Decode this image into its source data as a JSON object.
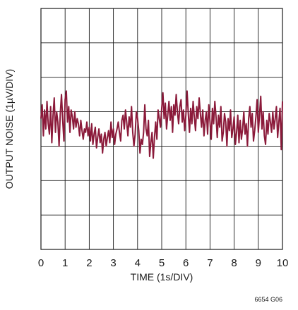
{
  "chart_data": {
    "type": "line",
    "xlabel": "TIME (1s/DIV)",
    "ylabel": "OUTPUT NOISE (1µV/DIV)",
    "x_ticks": [
      "0",
      "1",
      "2",
      "3",
      "4",
      "5",
      "6",
      "7",
      "8",
      "9",
      "10"
    ],
    "xlim": [
      0,
      10
    ],
    "ylim": [
      -3.6,
      3.4
    ],
    "grid": true,
    "y_divisions": 7,
    "figure_id": "6654 G06",
    "colors": {
      "trace": "#8b1a3a",
      "grid": "#1a1a1a",
      "text": "#1a1a1a"
    },
    "series": [
      {
        "x": [
          0.0,
          0.05,
          0.1,
          0.15,
          0.2,
          0.25,
          0.3,
          0.35,
          0.4,
          0.45,
          0.5,
          0.55,
          0.6,
          0.65,
          0.7,
          0.75,
          0.8,
          0.85,
          0.9,
          0.95,
          1.0,
          1.05,
          1.1,
          1.15,
          1.2,
          1.25,
          1.3,
          1.35,
          1.4,
          1.45,
          1.5,
          1.55,
          1.6,
          1.65,
          1.7,
          1.75,
          1.8,
          1.85,
          1.9,
          1.95,
          2.0,
          2.05,
          2.1,
          2.15,
          2.2,
          2.25,
          2.3,
          2.35,
          2.4,
          2.45,
          2.5,
          2.55,
          2.6,
          2.65,
          2.7,
          2.75,
          2.8,
          2.85,
          2.9,
          2.95,
          3.0,
          3.05,
          3.1,
          3.15,
          3.2,
          3.25,
          3.3,
          3.35,
          3.4,
          3.45,
          3.5,
          3.55,
          3.6,
          3.65,
          3.7,
          3.75,
          3.8,
          3.85,
          3.9,
          3.95,
          4.0,
          4.05,
          4.1,
          4.15,
          4.2,
          4.25,
          4.3,
          4.35,
          4.4,
          4.45,
          4.5,
          4.55,
          4.6,
          4.65,
          4.7,
          4.75,
          4.8,
          4.85,
          4.9,
          4.95,
          5.0,
          5.05,
          5.1,
          5.15,
          5.2,
          5.25,
          5.3,
          5.35,
          5.4,
          5.45,
          5.5,
          5.55,
          5.6,
          5.65,
          5.7,
          5.75,
          5.8,
          5.85,
          5.9,
          5.95,
          6.0,
          6.05,
          6.1,
          6.15,
          6.2,
          6.25,
          6.3,
          6.35,
          6.4,
          6.45,
          6.5,
          6.55,
          6.6,
          6.65,
          6.7,
          6.75,
          6.8,
          6.85,
          6.9,
          6.95,
          7.0,
          7.05,
          7.1,
          7.15,
          7.2,
          7.25,
          7.3,
          7.35,
          7.4,
          7.45,
          7.5,
          7.55,
          7.6,
          7.65,
          7.7,
          7.75,
          7.8,
          7.85,
          7.9,
          7.95,
          8.0,
          8.05,
          8.1,
          8.15,
          8.2,
          8.25,
          8.3,
          8.35,
          8.4,
          8.45,
          8.5,
          8.55,
          8.6,
          8.65,
          8.7,
          8.75,
          8.8,
          8.85,
          8.9,
          8.95,
          9.0,
          9.05,
          9.1,
          9.15,
          9.2,
          9.25,
          9.3,
          9.35,
          9.4,
          9.45,
          9.5,
          9.55,
          9.6,
          9.65,
          9.7,
          9.75,
          9.8,
          9.85,
          9.9,
          9.95,
          10.0
        ],
        "y": [
          0.2,
          0.6,
          -0.3,
          0.45,
          -0.1,
          0.7,
          0.05,
          -0.25,
          0.55,
          -0.5,
          0.3,
          0.8,
          -0.2,
          0.4,
          0.1,
          -0.6,
          0.35,
          0.9,
          0.15,
          -0.45,
          0.75,
          1.0,
          0.1,
          0.55,
          -0.2,
          0.45,
          0.25,
          -0.1,
          0.4,
          -0.05,
          0.2,
          0.05,
          -0.3,
          0.15,
          -0.15,
          -0.4,
          -0.1,
          -0.2,
          0.1,
          -0.3,
          -0.05,
          -0.45,
          0.05,
          -0.55,
          -0.25,
          -0.05,
          -0.65,
          -0.35,
          -0.1,
          -0.5,
          -0.25,
          -0.8,
          -0.4,
          -0.2,
          -0.6,
          -0.35,
          -0.15,
          -0.5,
          0.1,
          -0.35,
          -0.1,
          -0.55,
          -0.25,
          -0.1,
          0.1,
          -0.2,
          -0.45,
          0.15,
          0.3,
          -0.1,
          0.45,
          0.1,
          -0.3,
          0.25,
          -0.05,
          0.55,
          -0.2,
          -0.6,
          -0.25,
          0.4,
          0.2,
          -0.15,
          -0.8,
          -0.4,
          -0.55,
          -0.2,
          0.6,
          -0.1,
          -0.3,
          0.15,
          -0.9,
          -0.5,
          -0.2,
          -0.95,
          -0.35,
          0.1,
          -0.4,
          0.45,
          0.2,
          -0.05,
          0.5,
          0.95,
          0.2,
          0.65,
          -0.1,
          0.3,
          0.7,
          0.15,
          0.55,
          -0.2,
          0.6,
          0.3,
          0.9,
          0.4,
          0.05,
          0.55,
          0.75,
          0.1,
          0.45,
          -0.15,
          0.3,
          1.0,
          0.35,
          -0.2,
          0.5,
          0.05,
          0.7,
          0.25,
          -0.15,
          0.55,
          0.2,
          0.8,
          0.35,
          -0.05,
          0.45,
          -0.3,
          0.15,
          0.4,
          -0.25,
          0.6,
          0.1,
          -0.4,
          0.5,
          0.05,
          0.7,
          0.25,
          -0.35,
          0.3,
          -0.05,
          0.55,
          -0.45,
          -0.2,
          0.35,
          0.1,
          -0.6,
          0.2,
          -0.15,
          0.45,
          -0.35,
          -0.1,
          0.25,
          -0.55,
          -0.2,
          0.3,
          -0.5,
          0.15,
          -0.4,
          -0.1,
          0.4,
          -0.25,
          0.05,
          -0.6,
          0.2,
          0.55,
          -0.05,
          0.35,
          -0.45,
          -0.15,
          0.25,
          0.75,
          -0.2,
          0.3,
          0.85,
          -0.1,
          0.4,
          -0.3,
          -0.55,
          0.15,
          -0.25,
          0.35,
          0.1,
          -0.2,
          0.4,
          -0.1,
          0.2,
          0.55,
          -0.35,
          0.1,
          0.5,
          -0.7,
          0.7
        ]
      }
    ]
  }
}
